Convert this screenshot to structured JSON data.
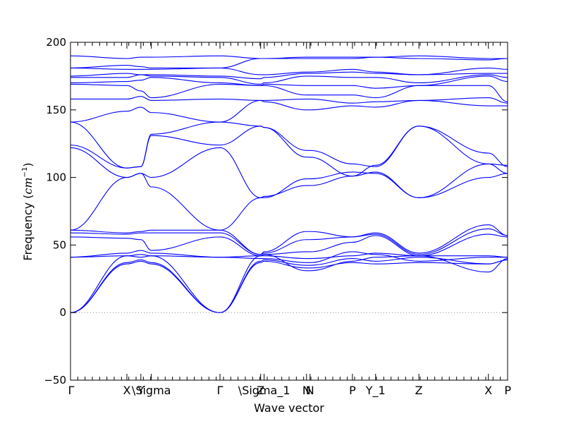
{
  "chart_data": {
    "type": "line",
    "title": "",
    "xlabel": "Wave vector",
    "ylabel": "Frequency (",
    "ylabel_math": "cm",
    "ylabel_exp": "−1",
    "ylabel_close": ")",
    "ylim": [
      -50,
      200
    ],
    "xlim": [
      0,
      1
    ],
    "yticks": [
      -50,
      0,
      50,
      100,
      150,
      200
    ],
    "ytick_labels": [
      "−50",
      "0",
      "50",
      "100",
      "150",
      "200"
    ],
    "grid": false,
    "legend": "none",
    "zero_line": true,
    "colors": {
      "bands": "#0000ff",
      "axes": "#000000",
      "zero_line": "#888888"
    },
    "high_symmetry_points": [
      {
        "label": "Γ",
        "x": 0.0
      },
      {
        "label": "X",
        "x": 0.129
      },
      {
        "label": "Y",
        "x": 0.161
      },
      {
        "label": "\\Sigma",
        "x": 0.185
      },
      {
        "label": "Γ",
        "x": 0.342
      },
      {
        "label": "Z",
        "x": 0.435
      },
      {
        "label": "\\Sigma_1",
        "x": 0.443
      },
      {
        "label": "N",
        "x": 0.54
      },
      {
        "label": "N",
        "x": 0.548
      },
      {
        "label": "P",
        "x": 0.645
      },
      {
        "label": "Y_1",
        "x": 0.698
      },
      {
        "label": "Z",
        "x": 0.797
      },
      {
        "label": "X",
        "x": 0.956
      },
      {
        "label": "P",
        "x": 1.0
      }
    ],
    "x": [
      0.0,
      0.129,
      0.161,
      0.185,
      0.342,
      0.435,
      0.443,
      0.54,
      0.548,
      0.645,
      0.698,
      0.797,
      0.956,
      1.0
    ],
    "series": [
      {
        "values": [
          0,
          36,
          38,
          36,
          0,
          37,
          38,
          33,
          33,
          37,
          36,
          37,
          36,
          39
        ]
      },
      {
        "values": [
          0,
          37,
          39,
          37,
          0,
          38,
          39,
          35,
          35,
          40,
          38,
          41,
          36,
          39
        ]
      },
      {
        "values": [
          0,
          42,
          41,
          42,
          0,
          42,
          43,
          31,
          31,
          38,
          41,
          42,
          30,
          40
        ]
      },
      {
        "values": [
          41,
          42,
          43,
          42,
          41,
          40,
          40,
          37,
          37,
          45,
          43,
          38,
          41,
          41
        ]
      },
      {
        "values": [
          41,
          44,
          46,
          44,
          41,
          42,
          42,
          40,
          40,
          42,
          44,
          42,
          42,
          41
        ]
      },
      {
        "values": [
          56,
          55,
          54,
          46,
          56,
          42,
          43,
          45,
          45,
          52,
          57,
          42,
          58,
          56
        ]
      },
      {
        "values": [
          59,
          58,
          59,
          59,
          59,
          43,
          44,
          54,
          54,
          56,
          58,
          43,
          62,
          57
        ]
      },
      {
        "values": [
          61,
          59,
          60,
          61,
          61,
          43,
          45,
          60,
          60,
          56,
          59,
          44,
          65,
          57
        ]
      },
      {
        "values": [
          61,
          100,
          103,
          93,
          61,
          85,
          85,
          99,
          99,
          104,
          103,
          85,
          100,
          103
        ]
      },
      {
        "values": [
          122,
          100,
          103,
          100,
          122,
          85,
          86,
          94,
          94,
          101,
          104,
          85,
          110,
          103
        ]
      },
      {
        "values": [
          124,
          107,
          108,
          131,
          124,
          138,
          137,
          115,
          115,
          101,
          109,
          138,
          118,
          108
        ]
      },
      {
        "values": [
          141,
          107,
          108,
          132,
          141,
          138,
          137,
          120,
          120,
          110,
          108,
          138,
          110,
          109
        ]
      },
      {
        "values": [
          141,
          149,
          152,
          148,
          141,
          157,
          156,
          150,
          150,
          153,
          152,
          157,
          153,
          153
        ]
      },
      {
        "values": [
          158,
          158,
          160,
          157,
          158,
          157,
          157,
          158,
          158,
          155,
          156,
          157,
          159,
          155
        ]
      },
      {
        "values": [
          169,
          168,
          164,
          159,
          169,
          168,
          168,
          161,
          161,
          161,
          159,
          168,
          168,
          156
        ]
      },
      {
        "values": [
          170,
          171,
          172,
          174,
          170,
          168,
          169,
          168,
          168,
          168,
          166,
          168,
          175,
          171
        ]
      },
      {
        "values": [
          174,
          174,
          176,
          175,
          174,
          169,
          170,
          175,
          175,
          174,
          174,
          170,
          176,
          174
        ]
      },
      {
        "values": [
          175,
          177,
          176,
          176,
          175,
          173,
          174,
          177,
          177,
          178,
          177,
          176,
          177,
          177
        ]
      },
      {
        "values": [
          181,
          180,
          180,
          180,
          181,
          176,
          176,
          178,
          178,
          180,
          178,
          176,
          181,
          180
        ]
      },
      {
        "values": [
          181,
          183,
          182,
          181,
          181,
          188,
          188,
          188,
          188,
          188,
          189,
          188,
          187,
          188
        ]
      },
      {
        "values": [
          190,
          188,
          189,
          189,
          190,
          188,
          188,
          189,
          189,
          189,
          189,
          190,
          188,
          188
        ]
      }
    ]
  }
}
